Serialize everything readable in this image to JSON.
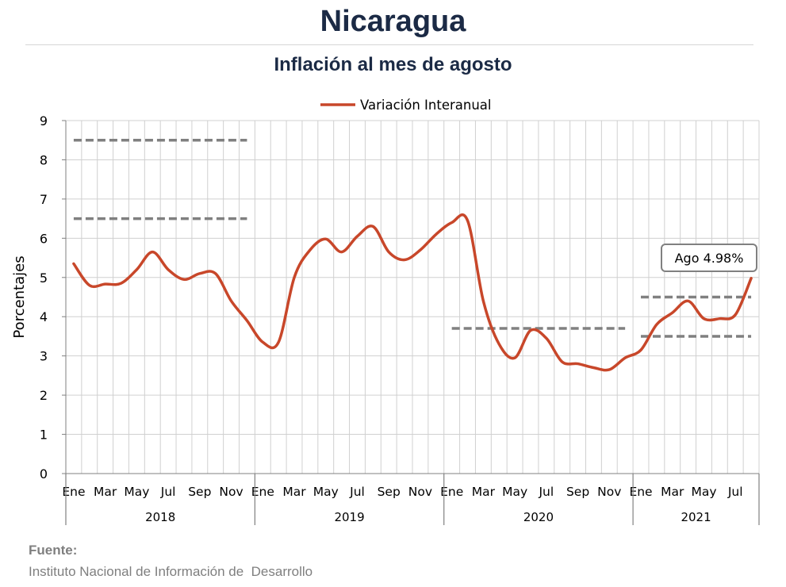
{
  "header": {
    "title": "Nicaragua",
    "subtitle": "Inflación al mes de agosto"
  },
  "source": {
    "label": "Fuente:",
    "text": "Instituto Nacional de Información de  Desarrollo"
  },
  "chart_data": {
    "type": "line",
    "ylabel": "Porcentajes",
    "ylim": [
      0,
      9
    ],
    "yticks": [
      0,
      1,
      2,
      3,
      4,
      5,
      6,
      7,
      8,
      9
    ],
    "grid": true,
    "legend_position": "top",
    "month_labels": [
      "Ene",
      "",
      "Mar",
      "",
      "May",
      "",
      "Jul",
      "",
      "Sep",
      "",
      "Nov",
      ""
    ],
    "years": [
      {
        "label": "2018",
        "months": 12
      },
      {
        "label": "2019",
        "months": 12
      },
      {
        "label": "2020",
        "months": 12
      },
      {
        "label": "2021",
        "months": 8
      }
    ],
    "series": [
      {
        "name": "Variación Interanual",
        "color": "#c8472a",
        "values": [
          5.35,
          4.8,
          4.83,
          4.85,
          5.2,
          5.65,
          5.2,
          4.95,
          5.1,
          5.1,
          4.4,
          3.9,
          3.35,
          3.35,
          5.0,
          5.7,
          5.98,
          5.65,
          6.05,
          6.3,
          5.65,
          5.45,
          5.7,
          6.1,
          6.4,
          6.45,
          4.4,
          3.3,
          2.95,
          3.65,
          3.45,
          2.85,
          2.8,
          2.7,
          2.65,
          2.95,
          3.15,
          3.8,
          4.1,
          4.4,
          3.95,
          3.95,
          4.05,
          4.98
        ]
      }
    ],
    "reference_lines": [
      {
        "from_index": 0,
        "to_index": 11,
        "value": 8.5
      },
      {
        "from_index": 0,
        "to_index": 11,
        "value": 6.5
      },
      {
        "from_index": 24,
        "to_index": 35,
        "value": 3.7
      },
      {
        "from_index": 36,
        "to_index": 43,
        "value": 4.5
      },
      {
        "from_index": 36,
        "to_index": 43,
        "value": 3.5
      }
    ],
    "reference_line_color": "#808080",
    "annotation": {
      "text": "Ago 4.98%",
      "index": 43
    }
  }
}
